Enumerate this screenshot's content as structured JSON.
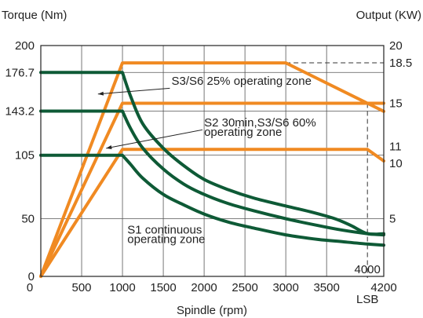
{
  "chart_data": {
    "type": "line",
    "ylabel_left": "Torque (Nm)",
    "ylabel_right": "Output (KW)",
    "xlabel": "Spindle (rpm)",
    "xlim": [
      0,
      4200
    ],
    "ylim_left": [
      0,
      200
    ],
    "ylim_right": [
      0,
      20
    ],
    "grid": true,
    "x_ticks": [
      "500",
      "1000",
      "1500",
      "2000",
      "2500",
      "3000",
      "3500",
      "4200"
    ],
    "x_origin_label": "0",
    "x_tick_values": [
      500,
      1000,
      1500,
      2000,
      2500,
      3000,
      3500,
      4200
    ],
    "y_left_tick_labels": [
      "200",
      "176.7",
      "143.2",
      "105",
      "50",
      "0"
    ],
    "y_left_tick_values": [
      200,
      176.7,
      143.2,
      105,
      50,
      0
    ],
    "y_right_tick_labels": [
      "20",
      "18.5",
      "15",
      "11",
      "10",
      "5"
    ],
    "y_right_tick_values": [
      20,
      18.5,
      15,
      11,
      10,
      5
    ],
    "marker_label": "4000",
    "marker_sublabel": "LSB",
    "marker_x": 4000,
    "colors": {
      "torque": "#0e5a36",
      "output": "#f08a22",
      "grid": "#555555",
      "dashed": "#333333"
    },
    "series": [
      {
        "kind": "output",
        "x": [
          0,
          1000,
          3000,
          4000,
          4200
        ],
        "y": [
          0,
          18.5,
          18.5,
          15,
          14.3
        ]
      },
      {
        "kind": "output",
        "x": [
          0,
          1000,
          4000,
          4200
        ],
        "y": [
          0,
          15,
          15,
          15
        ]
      },
      {
        "kind": "output",
        "x": [
          0,
          1000,
          4000,
          4200
        ],
        "y": [
          0,
          11,
          11,
          10
        ]
      },
      {
        "kind": "torque",
        "x": [
          0,
          1000,
          1100,
          1250,
          1500,
          1750,
          2000,
          2300,
          2600,
          3000,
          3300,
          3600,
          3800,
          4000,
          4200
        ],
        "y": [
          176.7,
          176.7,
          156,
          132,
          111,
          96,
          84,
          75,
          68,
          61,
          56,
          50,
          44,
          37,
          37
        ]
      },
      {
        "kind": "torque",
        "x": [
          0,
          1000,
          1100,
          1250,
          1500,
          1750,
          2000,
          2300,
          2600,
          3000,
          3400,
          3700,
          4000,
          4200
        ],
        "y": [
          143.2,
          143.2,
          128,
          111,
          93,
          80,
          71,
          63,
          57,
          50,
          44,
          40,
          37,
          36
        ]
      },
      {
        "kind": "torque",
        "x": [
          0,
          1000,
          1100,
          1250,
          1500,
          1750,
          2000,
          2300,
          2600,
          3000,
          3400,
          3700,
          4000,
          4200
        ],
        "y": [
          105,
          105,
          97,
          85,
          71,
          62,
          54,
          47,
          42,
          36,
          32,
          30,
          28,
          27
        ]
      }
    ],
    "annotations": [
      {
        "text": "S3/S6 25% operating zone",
        "text_x": 1600,
        "text_y_left": 166,
        "arrow_from_x": 1580,
        "arrow_from_y_left": 163,
        "arrow_to_x": 700,
        "arrow_to_y_left": 158
      },
      {
        "lines": [
          "S2 30min,S3/S6 60%",
          "operating zone"
        ],
        "text_x": 2000,
        "text_y_left": 130,
        "arrow_from_x": 1980,
        "arrow_from_y_left": 127,
        "arrow_to_x": 800,
        "arrow_to_y_left": 111
      },
      {
        "lines": [
          "S1 continuous",
          "operating zone"
        ],
        "text_x": 1060,
        "text_y_left": 37
      }
    ]
  }
}
